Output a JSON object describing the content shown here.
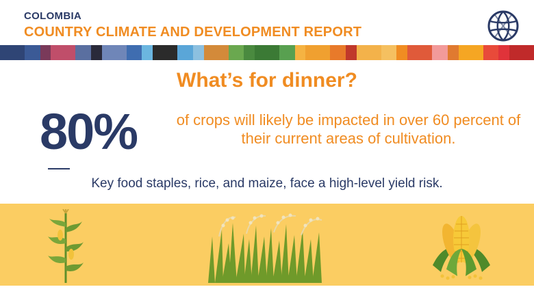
{
  "header": {
    "country": "COLOMBIA",
    "report_title": "COUNTRY CLIMATE AND DEVELOPMENT REPORT",
    "logo_icon": "world-bank-globe-icon"
  },
  "colors": {
    "navy": "#2a3a66",
    "orange": "#f08c22",
    "band": "#fbcd62"
  },
  "stripe_colors": [
    "#2f4575",
    "#3b5a96",
    "#7a3a5a",
    "#c04e6a",
    "#5a6fa0",
    "#2a2a3a",
    "#6f86b8",
    "#3f6db0",
    "#6bb6e0",
    "#2b2b2b",
    "#5aa6d8",
    "#8cc0e0",
    "#d38a3a",
    "#6aa84f",
    "#4a8a3f",
    "#3b7a35",
    "#58a050",
    "#f5b342",
    "#f0a030",
    "#e87a2a",
    "#c0392b",
    "#f3b24a",
    "#f5c060",
    "#f08c22",
    "#e05a3a",
    "#f29a9a",
    "#e07a30",
    "#f5a623",
    "#e84a3a",
    "#e0333a",
    "#c02a2a"
  ],
  "main": {
    "headline": "What’s for dinner?",
    "stat_value": "80%",
    "stat_description": "of crops will likely be impacted in over 60 percent of their current areas of cultivation.",
    "staples_text": "Key food staples, rice, and maize, face a high-level yield risk."
  },
  "illustrations": {
    "left": "corn-plant-icon",
    "center": "rice-grass-icon",
    "right": "corn-cobs-icon"
  }
}
